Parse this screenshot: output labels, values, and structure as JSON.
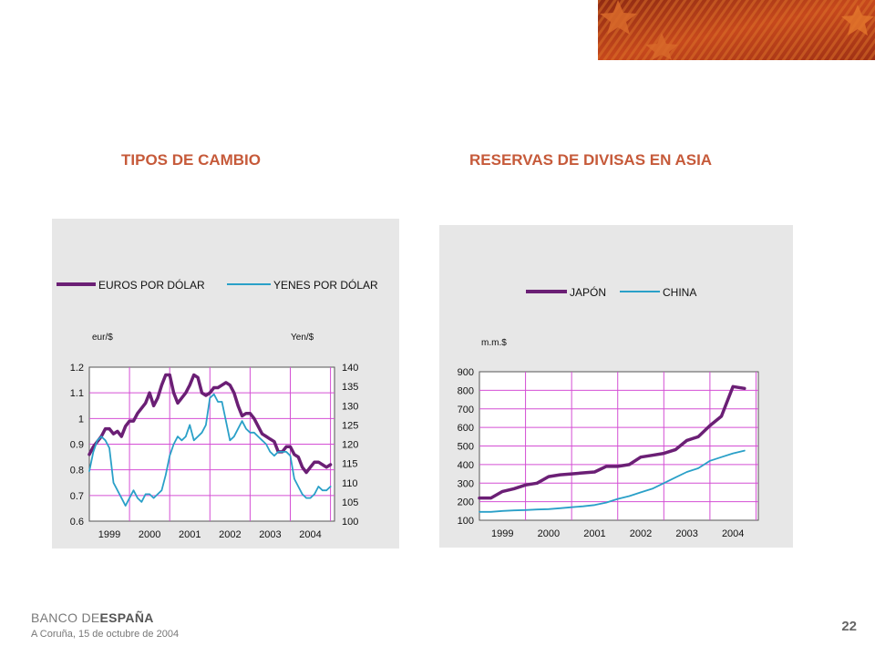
{
  "header": {
    "left_title": "TIPOS DE CAMBIO",
    "right_title": "RESERVAS DE DIVISAS EN ASIA"
  },
  "footer": {
    "logo_light": "BANCO DE",
    "logo_bold": "ESPAÑA",
    "date": "A Coruña,  15  de octubre de  2004",
    "page_number": "22"
  },
  "colors": {
    "accent": "#c65a3a",
    "series_purple": "#6b1f75",
    "series_cyan": "#2aa0c8",
    "grid": "#d44fd4",
    "panel_bg": "#e7e7e7"
  },
  "chart_data": [
    {
      "type": "line",
      "title": "TIPOS DE CAMBIO",
      "y_left_unit": "eur/$",
      "y_right_unit": "Yen/$",
      "x_ticks": [
        "1999",
        "2000",
        "2001",
        "2002",
        "2003",
        "2004"
      ],
      "xlim": [
        1998.5,
        2004.6
      ],
      "y_left_ticks": [
        "1.2",
        "1.1",
        "1",
        "0.9",
        "0.8",
        "0.7",
        "0.6"
      ],
      "y_left_lim": [
        0.6,
        1.2
      ],
      "y_right_ticks": [
        "140",
        "135",
        "130",
        "125",
        "120",
        "115",
        "110",
        "105",
        "100"
      ],
      "y_right_lim": [
        100,
        140
      ],
      "legend_position": "top",
      "grid": true,
      "series": [
        {
          "name": "EUROS POR DÓLAR",
          "axis": "left",
          "color": "#6b1f75",
          "x": [
            1998.5,
            1998.6,
            1998.7,
            1998.8,
            1998.9,
            1999.0,
            1999.1,
            1999.2,
            1999.3,
            1999.4,
            1999.5,
            1999.6,
            1999.7,
            1999.8,
            1999.9,
            2000.0,
            2000.1,
            2000.2,
            2000.3,
            2000.4,
            2000.5,
            2000.6,
            2000.7,
            2000.8,
            2000.9,
            2001.0,
            2001.1,
            2001.2,
            2001.3,
            2001.4,
            2001.5,
            2001.6,
            2001.7,
            2001.8,
            2001.9,
            2002.0,
            2002.1,
            2002.2,
            2002.3,
            2002.4,
            2002.5,
            2002.6,
            2002.7,
            2002.8,
            2002.9,
            2003.0,
            2003.1,
            2003.2,
            2003.3,
            2003.4,
            2003.5,
            2003.6,
            2003.7,
            2003.8,
            2003.9,
            2004.0,
            2004.1,
            2004.2,
            2004.3,
            2004.4,
            2004.5
          ],
          "values": [
            0.86,
            0.89,
            0.91,
            0.93,
            0.96,
            0.96,
            0.94,
            0.95,
            0.93,
            0.97,
            0.99,
            0.99,
            1.02,
            1.04,
            1.06,
            1.1,
            1.05,
            1.08,
            1.13,
            1.17,
            1.17,
            1.1,
            1.06,
            1.08,
            1.1,
            1.13,
            1.17,
            1.16,
            1.1,
            1.09,
            1.1,
            1.12,
            1.12,
            1.13,
            1.14,
            1.13,
            1.1,
            1.05,
            1.01,
            1.02,
            1.02,
            1.0,
            0.97,
            0.94,
            0.93,
            0.92,
            0.91,
            0.87,
            0.87,
            0.89,
            0.89,
            0.86,
            0.85,
            0.81,
            0.79,
            0.81,
            0.83,
            0.83,
            0.82,
            0.81,
            0.82
          ]
        },
        {
          "name": "YENES POR DÓLAR",
          "axis": "right",
          "color": "#2aa0c8",
          "x": [
            1998.5,
            1998.6,
            1998.7,
            1998.8,
            1998.9,
            1999.0,
            1999.1,
            1999.2,
            1999.3,
            1999.4,
            1999.5,
            1999.6,
            1999.7,
            1999.8,
            1999.9,
            2000.0,
            2000.1,
            2000.2,
            2000.3,
            2000.4,
            2000.5,
            2000.6,
            2000.7,
            2000.8,
            2000.9,
            2001.0,
            2001.1,
            2001.2,
            2001.3,
            2001.4,
            2001.5,
            2001.6,
            2001.7,
            2001.8,
            2001.9,
            2002.0,
            2002.1,
            2002.2,
            2002.3,
            2002.4,
            2002.5,
            2002.6,
            2002.7,
            2002.8,
            2002.9,
            2003.0,
            2003.1,
            2003.2,
            2003.3,
            2003.4,
            2003.5,
            2003.6,
            2003.7,
            2003.8,
            2003.9,
            2004.0,
            2004.1,
            2004.2,
            2004.3,
            2004.4,
            2004.5
          ],
          "values": [
            113,
            118,
            121,
            122,
            121,
            119,
            110,
            108,
            106,
            104,
            106,
            108,
            106,
            105,
            107,
            107,
            106,
            107,
            108,
            112,
            117,
            120,
            122,
            121,
            122,
            125,
            121,
            122,
            123,
            125,
            132,
            133,
            131,
            131,
            126,
            121,
            122,
            124,
            126,
            124,
            123,
            123,
            122,
            121,
            120,
            118,
            117,
            118,
            118,
            118,
            117,
            111,
            109,
            107,
            106,
            106,
            107,
            109,
            108,
            108,
            109
          ]
        }
      ]
    },
    {
      "type": "line",
      "title": "RESERVAS DE DIVISAS EN ASIA",
      "y_unit": "m.m.$",
      "x_ticks": [
        "1999",
        "2000",
        "2001",
        "2002",
        "2003",
        "2004"
      ],
      "xlim": [
        1998.5,
        2004.55
      ],
      "y_ticks": [
        "900",
        "800",
        "700",
        "600",
        "500",
        "400",
        "300",
        "200",
        "100"
      ],
      "ylim": [
        100,
        900
      ],
      "legend_position": "top",
      "grid": true,
      "series": [
        {
          "name": "JAPÓN",
          "color": "#6b1f75",
          "x": [
            1998.5,
            1998.75,
            1999.0,
            1999.25,
            1999.5,
            1999.75,
            2000.0,
            2000.25,
            2000.5,
            2000.75,
            2001.0,
            2001.25,
            2001.5,
            2001.75,
            2002.0,
            2002.25,
            2002.5,
            2002.75,
            2003.0,
            2003.25,
            2003.5,
            2003.75,
            2004.0,
            2004.25
          ],
          "values": [
            220,
            220,
            255,
            270,
            290,
            300,
            335,
            345,
            350,
            355,
            360,
            390,
            390,
            400,
            440,
            450,
            460,
            480,
            530,
            550,
            610,
            660,
            820,
            810
          ]
        },
        {
          "name": "CHINA",
          "color": "#2aa0c8",
          "x": [
            1998.5,
            1998.75,
            1999.0,
            1999.25,
            1999.5,
            1999.75,
            2000.0,
            2000.25,
            2000.5,
            2000.75,
            2001.0,
            2001.25,
            2001.5,
            2001.75,
            2002.0,
            2002.25,
            2002.5,
            2002.75,
            2003.0,
            2003.25,
            2003.5,
            2003.75,
            2004.0,
            2004.25
          ],
          "values": [
            145,
            145,
            150,
            153,
            155,
            158,
            160,
            165,
            170,
            175,
            182,
            195,
            215,
            230,
            250,
            270,
            300,
            330,
            360,
            380,
            420,
            440,
            460,
            475
          ]
        }
      ]
    }
  ]
}
